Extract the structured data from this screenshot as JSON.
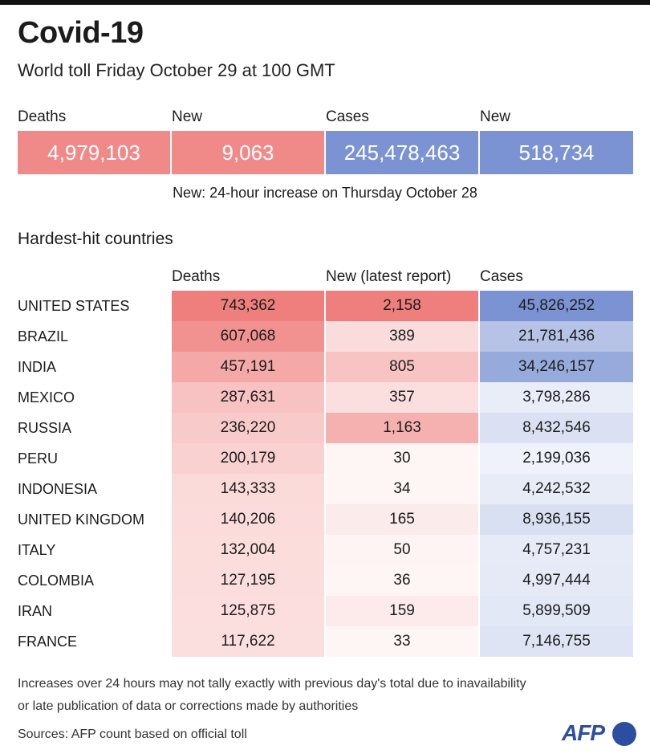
{
  "header": {
    "title": "Covid-19",
    "subtitle": "World toll Friday October 29 at 100 GMT"
  },
  "summary": {
    "labels": [
      "Deaths",
      "New",
      "Cases",
      "New"
    ],
    "values": [
      "4,979,103",
      "9,063",
      "245,478,463",
      "518,734"
    ],
    "colors": [
      "#f08a88",
      "#f08a88",
      "#7b93d3",
      "#7b93d3"
    ],
    "note": "New: 24-hour increase on Thursday October 28"
  },
  "section_title": "Hardest-hit countries",
  "colors": {
    "deaths_scale": "#ef7f7d",
    "cases_scale": "#7b93d3"
  },
  "chart_data": {
    "type": "table",
    "columns": [
      "Deaths",
      "New (latest report)",
      "Cases"
    ],
    "rows": [
      {
        "country": "UNITED STATES",
        "deaths": "743,362",
        "new": "2,158",
        "cases": "45,826,252"
      },
      {
        "country": "BRAZIL",
        "deaths": "607,068",
        "new": "389",
        "cases": "21,781,436"
      },
      {
        "country": "INDIA",
        "deaths": "457,191",
        "new": "805",
        "cases": "34,246,157"
      },
      {
        "country": "MEXICO",
        "deaths": "287,631",
        "new": "357",
        "cases": "3,798,286"
      },
      {
        "country": "RUSSIA",
        "deaths": "236,220",
        "new": "1,163",
        "cases": "8,432,546"
      },
      {
        "country": "PERU",
        "deaths": "200,179",
        "new": "30",
        "cases": "2,199,036"
      },
      {
        "country": "INDONESIA",
        "deaths": "143,333",
        "new": "34",
        "cases": "4,242,532"
      },
      {
        "country": "UNITED KINGDOM",
        "deaths": "140,206",
        "new": "165",
        "cases": "8,936,155"
      },
      {
        "country": "ITALY",
        "deaths": "132,004",
        "new": "50",
        "cases": "4,757,231"
      },
      {
        "country": "COLOMBIA",
        "deaths": "127,195",
        "new": "36",
        "cases": "4,997,444"
      },
      {
        "country": "IRAN",
        "deaths": "125,875",
        "new": "159",
        "cases": "5,899,509"
      },
      {
        "country": "FRANCE",
        "deaths": "117,622",
        "new": "33",
        "cases": "7,146,755"
      }
    ]
  },
  "footer": {
    "note_line1": "Increases over 24 hours may not tally exactly with previous day's total due to inavailability",
    "note_line2": "or late publication of data or corrections made by authorities",
    "source": "Sources: AFP count based on official toll",
    "logo": "AFP"
  }
}
